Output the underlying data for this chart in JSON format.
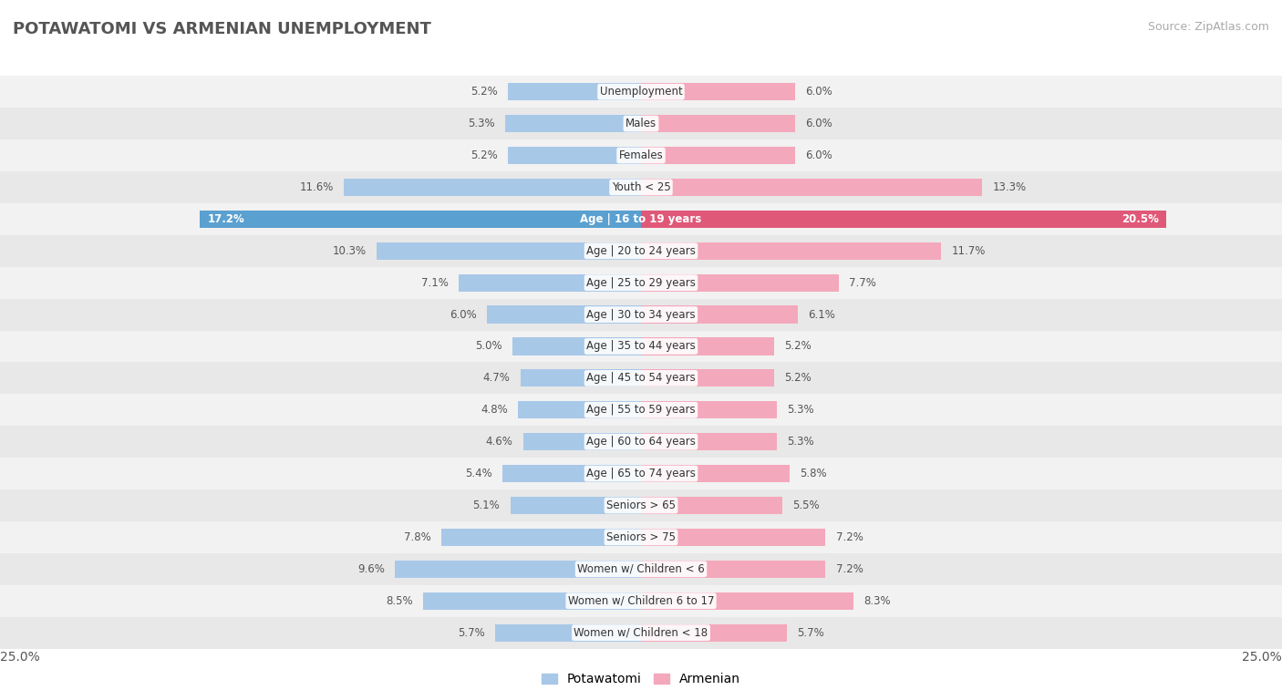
{
  "title": "POTAWATOMI VS ARMENIAN UNEMPLOYMENT",
  "source": "Source: ZipAtlas.com",
  "categories": [
    "Unemployment",
    "Males",
    "Females",
    "Youth < 25",
    "Age | 16 to 19 years",
    "Age | 20 to 24 years",
    "Age | 25 to 29 years",
    "Age | 30 to 34 years",
    "Age | 35 to 44 years",
    "Age | 45 to 54 years",
    "Age | 55 to 59 years",
    "Age | 60 to 64 years",
    "Age | 65 to 74 years",
    "Seniors > 65",
    "Seniors > 75",
    "Women w/ Children < 6",
    "Women w/ Children 6 to 17",
    "Women w/ Children < 18"
  ],
  "potawatomi": [
    5.2,
    5.3,
    5.2,
    11.6,
    17.2,
    10.3,
    7.1,
    6.0,
    5.0,
    4.7,
    4.8,
    4.6,
    5.4,
    5.1,
    7.8,
    9.6,
    8.5,
    5.7
  ],
  "armenian": [
    6.0,
    6.0,
    6.0,
    13.3,
    20.5,
    11.7,
    7.7,
    6.1,
    5.2,
    5.2,
    5.3,
    5.3,
    5.8,
    5.5,
    7.2,
    7.2,
    8.3,
    5.7
  ],
  "potawatomi_color": "#a8c8e8",
  "armenian_color": "#f4a8bc",
  "potawatomi_highlight": "#5aa0d0",
  "armenian_highlight": "#e05878",
  "row_bg_even": "#f2f2f2",
  "row_bg_odd": "#e8e8e8",
  "max_val": 25.0,
  "legend_potawatomi": "Potawatomi",
  "legend_armenian": "Armenian",
  "bar_height": 0.55,
  "label_fontsize": 8.5,
  "cat_fontsize": 8.5,
  "title_fontsize": 13,
  "source_fontsize": 9
}
